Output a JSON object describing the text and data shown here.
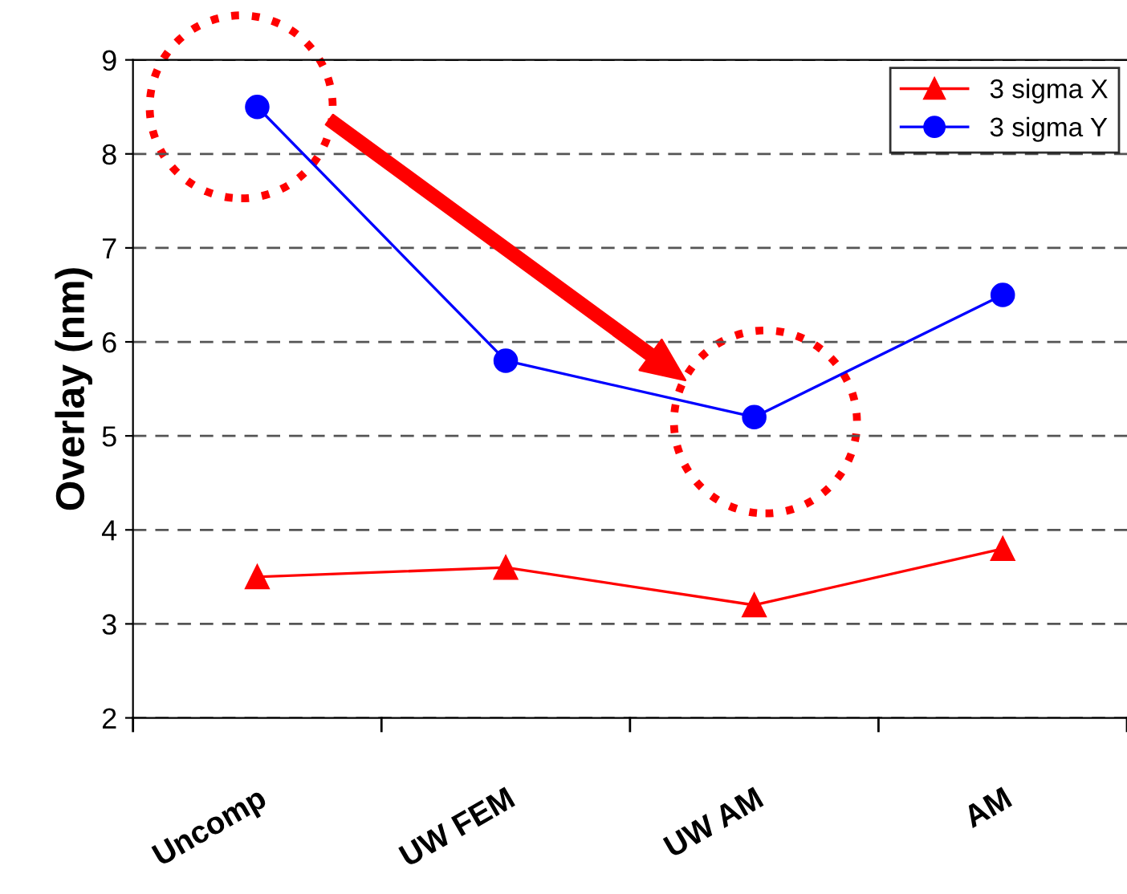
{
  "chart_data": {
    "type": "line",
    "ylabel": "Overlay (nm)",
    "categories": [
      "Uncomp",
      "UW FEM",
      "UW AM",
      "AM"
    ],
    "series": [
      {
        "name": "3 sigma X",
        "color": "#ff0000",
        "marker": "triangle",
        "values": [
          3.5,
          3.6,
          3.2,
          3.8
        ]
      },
      {
        "name": "3 sigma Y",
        "color": "#0000ff",
        "marker": "circle",
        "values": [
          8.5,
          5.8,
          5.2,
          6.5
        ]
      }
    ],
    "ylim": [
      2,
      9
    ],
    "yticks": [
      2,
      3,
      4,
      5,
      6,
      7,
      8,
      9
    ],
    "grid": "y",
    "legend": "top right",
    "line_style": "solid"
  }
}
